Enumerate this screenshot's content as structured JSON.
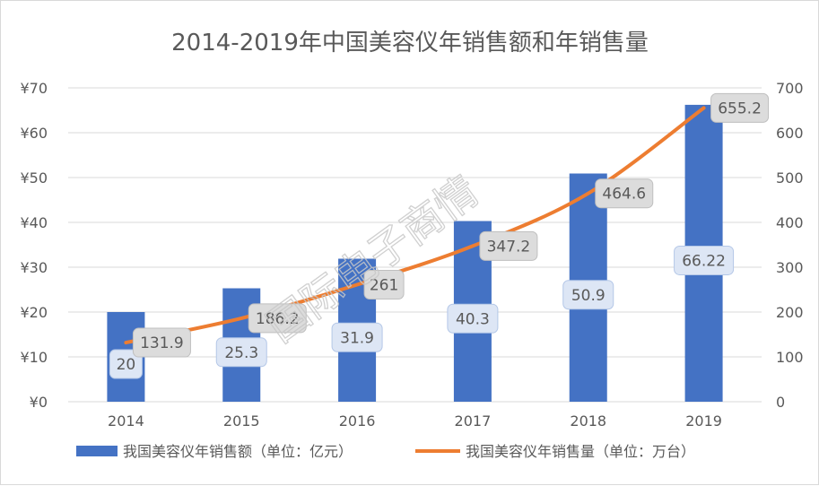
{
  "chart_data": {
    "type": "bar",
    "title": "2014-2019年中国美容仪年销售额和年销售量",
    "categories": [
      "2014",
      "2015",
      "2016",
      "2017",
      "2018",
      "2019"
    ],
    "series": [
      {
        "name": "我国美容仪年销售额（单位：亿元）",
        "type": "bar",
        "axis": "left",
        "color": "#4472c4",
        "values": [
          20,
          25.3,
          31.9,
          40.3,
          50.9,
          66.22
        ],
        "labels": [
          "20",
          "25.3",
          "31.9",
          "40.3",
          "50.9",
          "66.22"
        ]
      },
      {
        "name": "我国美容仪年销售量（单位：万台）",
        "type": "line",
        "axis": "right",
        "color": "#ed7d31",
        "values": [
          131.9,
          186.2,
          261,
          347.2,
          464.6,
          655.2
        ],
        "labels": [
          "131.9",
          "186.2",
          "261",
          "347.2",
          "464.6",
          "655.2"
        ]
      }
    ],
    "y_left": {
      "min": 0,
      "max": 70,
      "ticks": [
        0,
        10,
        20,
        30,
        40,
        50,
        60,
        70
      ],
      "tick_labels": [
        "¥0",
        "¥10",
        "¥20",
        "¥30",
        "¥40",
        "¥50",
        "¥60",
        "¥70"
      ]
    },
    "y_right": {
      "min": 0,
      "max": 700,
      "ticks": [
        0,
        100,
        200,
        300,
        400,
        500,
        600,
        700
      ],
      "tick_labels": [
        "0",
        "100",
        "200",
        "300",
        "400",
        "500",
        "600",
        "700"
      ]
    },
    "grid": true,
    "legend_position": "bottom"
  },
  "watermark": "国际电子商情"
}
